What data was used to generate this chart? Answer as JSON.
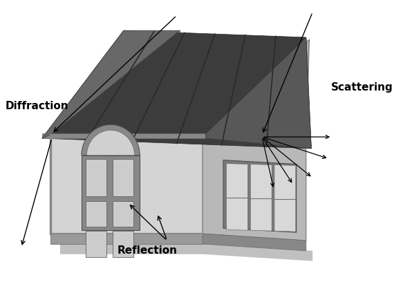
{
  "background_color": "#ffffff",
  "labels": {
    "diffraction": "Diffraction",
    "scattering": "Scattering",
    "reflection": "Reflection"
  },
  "label_fontsize": 11,
  "label_fontweight": "bold",
  "house_colors": {
    "front_wall": "#d4d4d4",
    "side_wall": "#b8b8b8",
    "gable_front": "#c8c8c8",
    "gable_side": "#b0b0b0",
    "roof_dark": "#3c3c3c",
    "roof_medium": "#505050",
    "eave_bottom": "#888888",
    "eave_side": "#787878",
    "base_front": "#9a9a9a",
    "base_side": "#888888",
    "door_frame": "#888888",
    "door_panel": "#cccccc",
    "door_arch_fill": "#c0c0c0",
    "window_frame": "#787878",
    "window_pane": "#d8d8d8",
    "shadow": "#c8c8c8",
    "wall_edge": "#707070",
    "roof_stripe": "#2a2a2a"
  }
}
